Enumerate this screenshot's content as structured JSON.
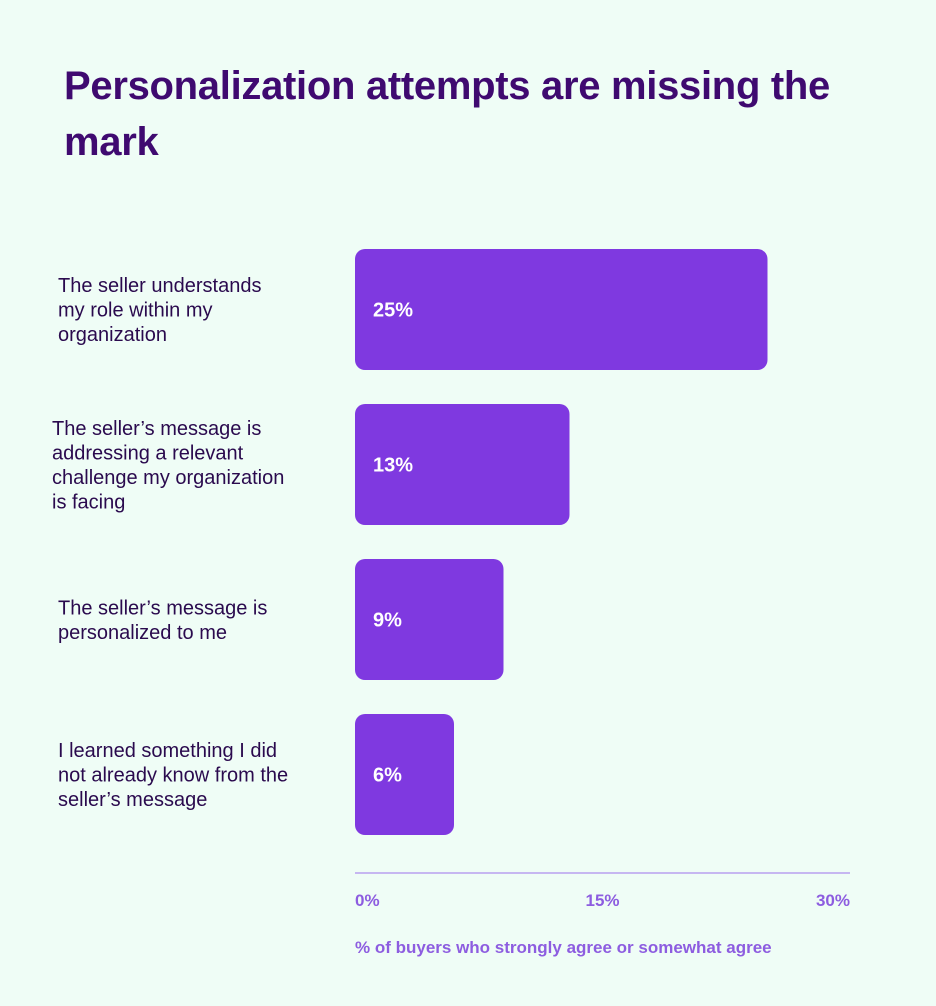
{
  "chart_data": {
    "type": "bar",
    "orientation": "horizontal",
    "title": "Personalization attempts are missing the mark",
    "categories": [
      "The seller understands my role within my organization",
      "The seller’s message is addressing a relevant challenge my organization is facing",
      "The seller’s message is personalized to me",
      "I learned something I did not already know from the seller’s message"
    ],
    "category_lines": [
      [
        "The seller understands",
        "my role within my",
        "organization"
      ],
      [
        "The seller’s message is",
        "addressing a relevant",
        "challenge my organization",
        "is facing"
      ],
      [
        "The seller’s message is",
        "personalized to me"
      ],
      [
        "I learned something I did",
        "not already know from the",
        "seller’s message"
      ]
    ],
    "values": [
      25,
      13,
      9,
      6
    ],
    "data_labels": [
      "25%",
      "13%",
      "9%",
      "6%"
    ],
    "xlim": [
      0,
      30
    ],
    "ticks": [
      0,
      15,
      30
    ],
    "tick_labels": [
      "0%",
      "15%",
      "30%"
    ],
    "xlabel": "% of buyers who strongly agree or somewhat agree",
    "ylabel": "",
    "grid": false,
    "legend": "none",
    "colors": {
      "bar": "#7f39e0",
      "title": "#3f0a70",
      "category_text": "#2a0a4e",
      "axis": "#b9a0ef",
      "axis_text": "#8d5de0",
      "background": "#effdf6"
    }
  }
}
